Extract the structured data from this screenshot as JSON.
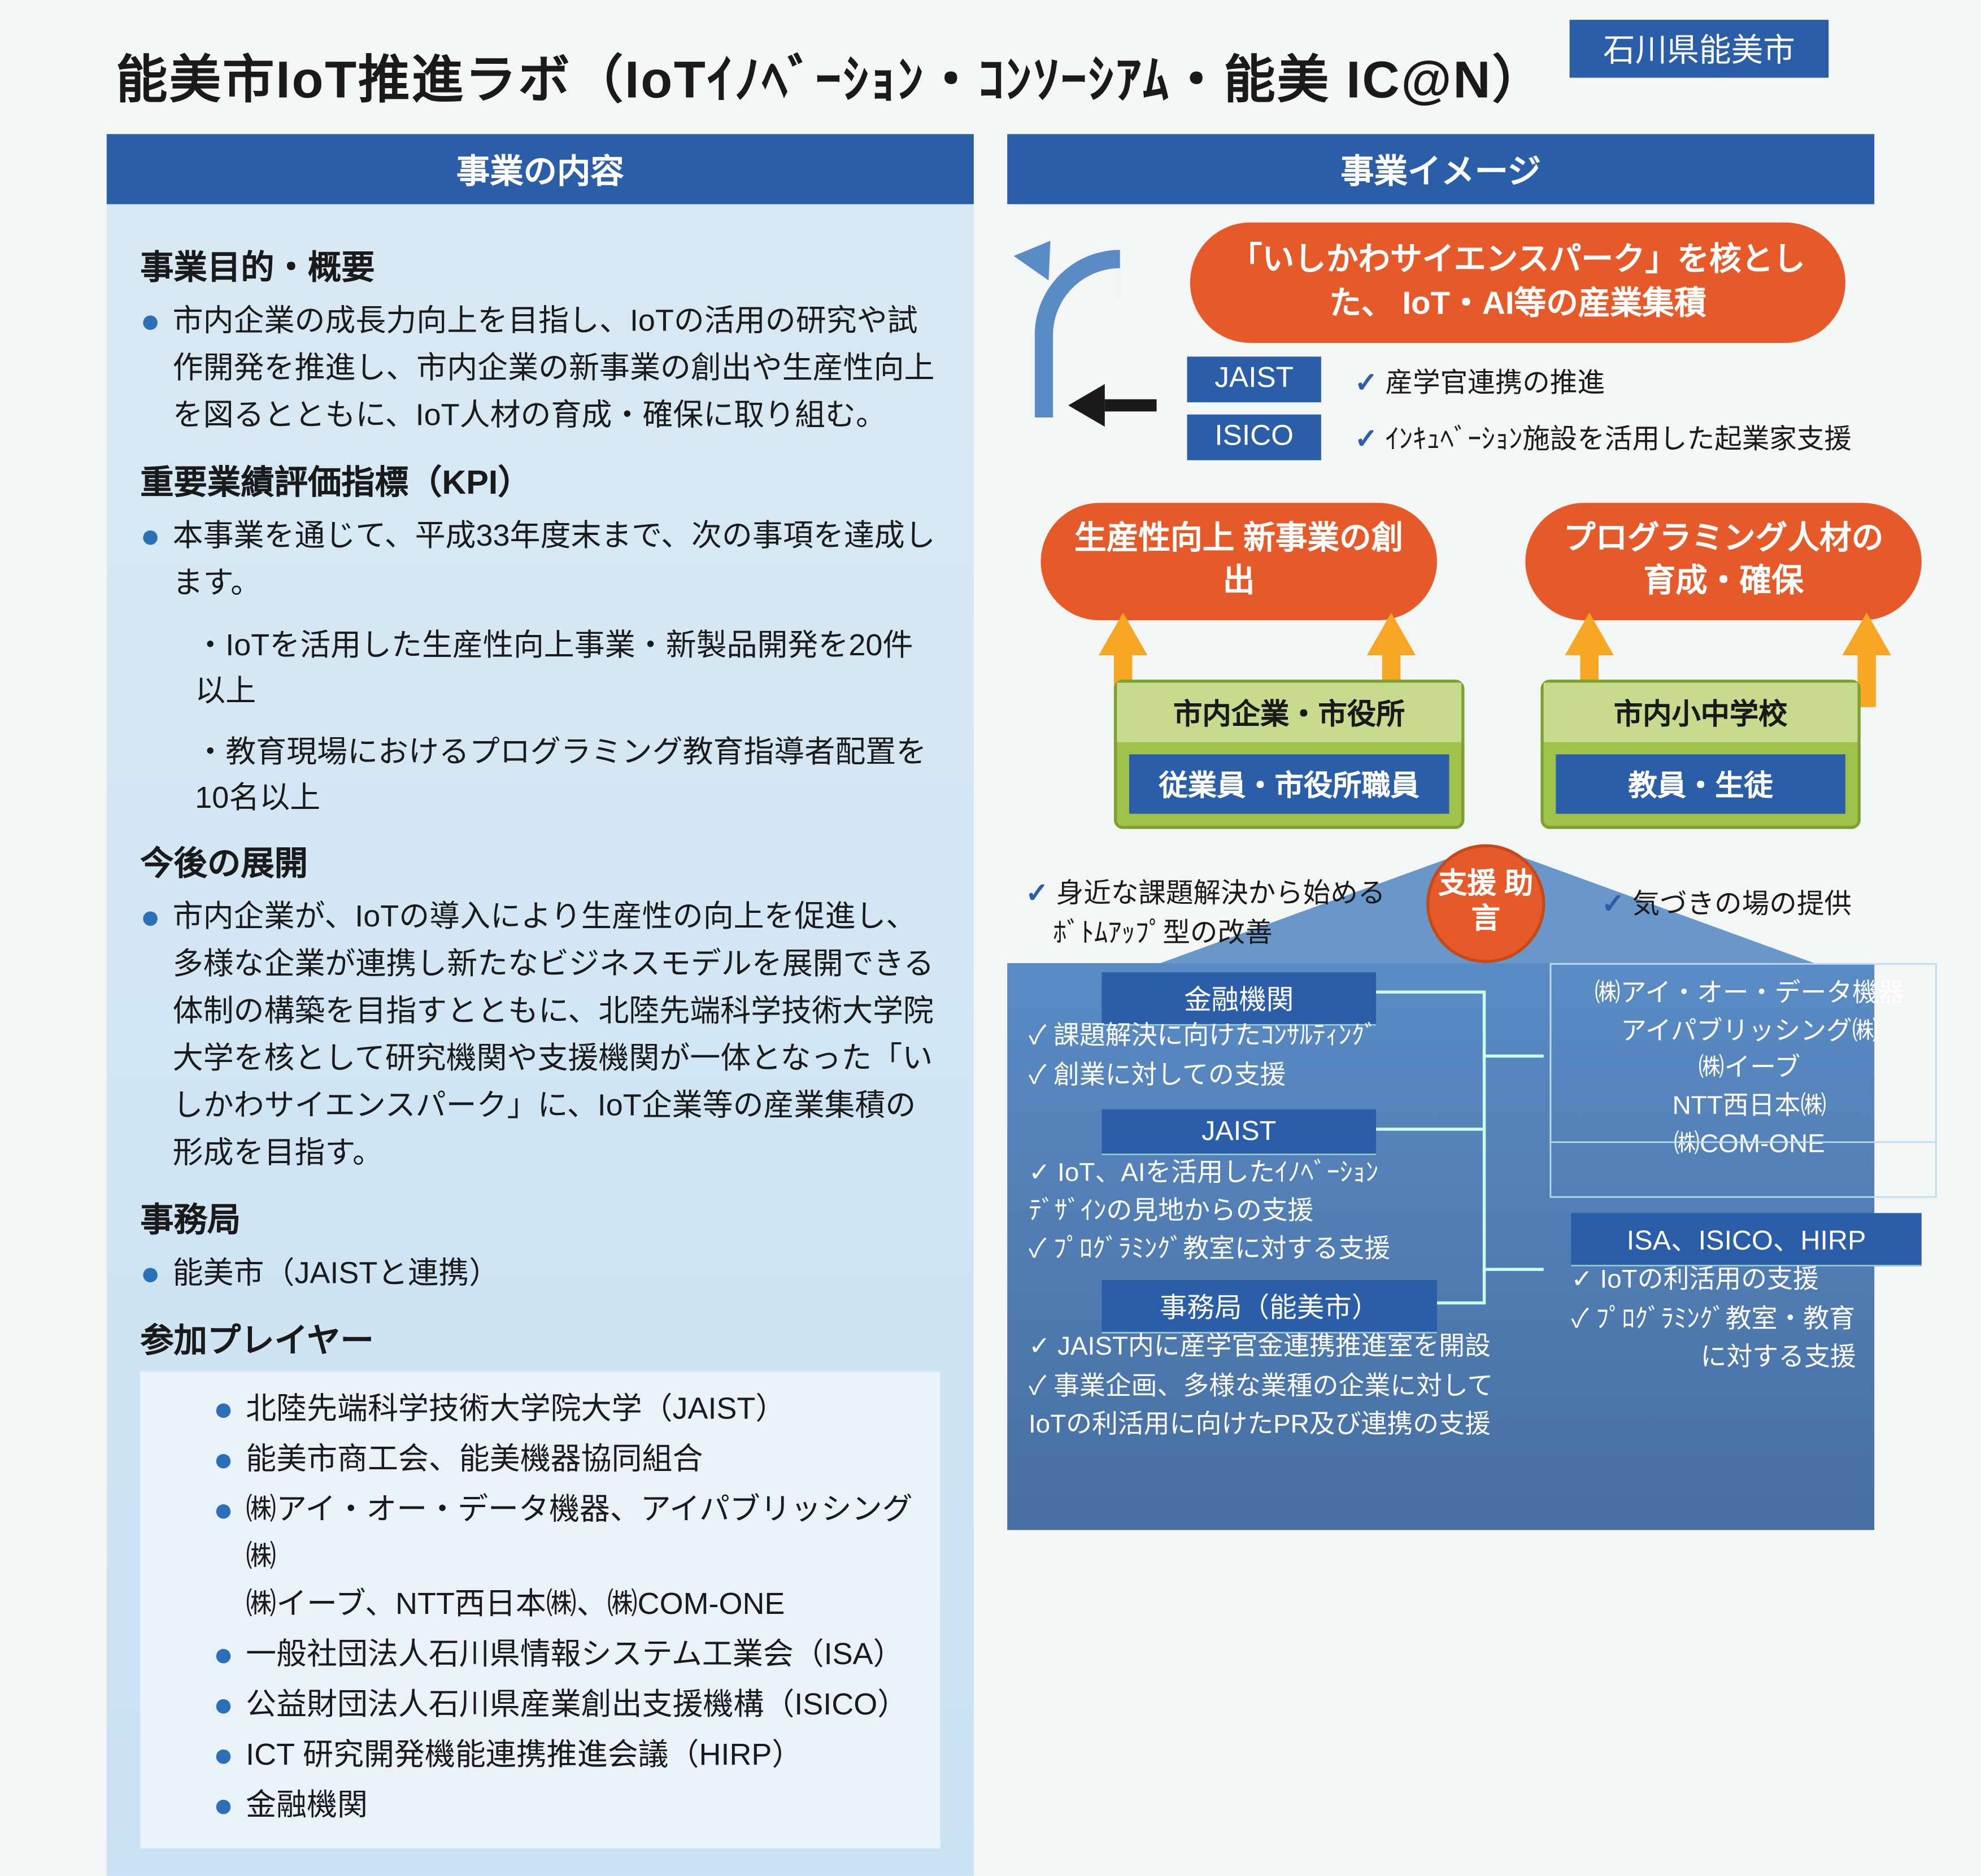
{
  "header": {
    "location": "石川県能美市",
    "title": "能美市IoT推進ラボ（IoTｲﾉﾍﾞｰｼｮﾝ・ｺﾝｿｰｼｱﾑ・能美 IC@N）"
  },
  "left": {
    "header": "事業の内容",
    "sec1_h": "事業目的・概要",
    "sec1_b": "市内企業の成長力向上を目指し、IoTの活用の研究や試作開発を推進し、市内企業の新事業の創出や生産性向上を図るとともに、IoT人材の育成・確保に取り組む。",
    "sec2_h": "重要業績評価指標（KPI）",
    "sec2_b": "本事業を通じて、平成33年度末まで、次の事項を達成します。",
    "sec2_s1": "・IoTを活用した生産性向上事業・新製品開発を20件以上",
    "sec2_s2": "・教育現場におけるプログラミング教育指導者配置を10名以上",
    "sec3_h": "今後の展開",
    "sec3_b": "市内企業が、IoTの導入により生産性の向上を促進し、多様な企業が連携し新たなビジネスモデルを展開できる体制の構築を目指すとともに、北陸先端科学技術大学院大学を核として研究機関や支援機関が一体となった「いしかわサイエンスパーク」に、IoT企業等の産業集積の形成を目指す。",
    "sec4_h": "事務局",
    "sec4_b": "能美市（JAISTと連携）",
    "sec5_h": "参加プレイヤー",
    "players": [
      "北陸先端科学技術大学院大学（JAIST）",
      "能美市商工会、能美機器協同組合",
      "㈱アイ・オー・データ機器、アイパブリッシング㈱\n㈱イーブ、NTT西日本㈱、㈱COM-ONE",
      "一般社団法人石川県情報システム工業会（ISA）",
      "公益財団法人石川県産業創出支援機構（ISICO）",
      "ICT 研究開発機能連携推進会議（HIRP）",
      "金融機関"
    ]
  },
  "right": {
    "header": "事業イメージ",
    "vision": "「いしかわサイエンスパーク」を核とした、\nIoT・AI等の産業集積",
    "jaist": "JAIST",
    "isico": "ISICO",
    "chk1": "産学官連携の推進",
    "chk2": "ｲﾝｷｭﾍﾞｰｼｮﾝ施設を活用した起業家支援",
    "pillar1": "生産性向上\n新事業の創出",
    "pillar2": "プログラミング人材の\n育成・確保",
    "target1_h": "市内企業・市役所",
    "target1_s": "従業員・市役所職員",
    "target2_h": "市内小中学校",
    "target2_s": "教員・生徒",
    "support": "支援\n助言",
    "bt_left1": "身近な課題解決から始める\n　ﾎﾞﾄﾑｱｯﾌﾟ型の改善",
    "bt_right1": "気づきの場の提供",
    "fin_h": "金融機関",
    "fin_1": "課題解決に向けたｺﾝｻﾙﾃｨﾝｸﾞ",
    "fin_2": "創業に対しての支援",
    "ja_h": "JAIST",
    "ja_1": "IoT、AIを活用したｲﾉﾍﾞｰｼｮﾝ\nﾃﾞｻﾞｲﾝの見地からの支援",
    "ja_2": "ﾌﾟﾛｸﾞﾗﾐﾝｸﾞ教室に対する支援",
    "of_h": "事務局（能美市）",
    "of_1": "JAIST内に産学官金連携推進室を開設",
    "of_2": "事業企画、多様な業種の企業に対して\nIoTの利活用に向けたPR及び連携の支援",
    "co_list": "㈱アイ・オー・データ機器\nアイパブリッシング㈱\n㈱イーブ\nNTT西日本㈱\n㈱COM-ONE",
    "isa_h": "ISA、ISICO、HIRP",
    "isa_1": "IoTの利活用の支援",
    "isa_2": "ﾌﾟﾛｸﾞﾗﾐﾝｸﾞ教室・教育\n　　　　　に対する支援"
  },
  "colors": {
    "header_blue": "#2a5ea8",
    "orange": "#e65a2a",
    "green": "#9fc24a",
    "panel_blue": "#5a8bc4",
    "arrow_yellow": "#f5a623"
  }
}
